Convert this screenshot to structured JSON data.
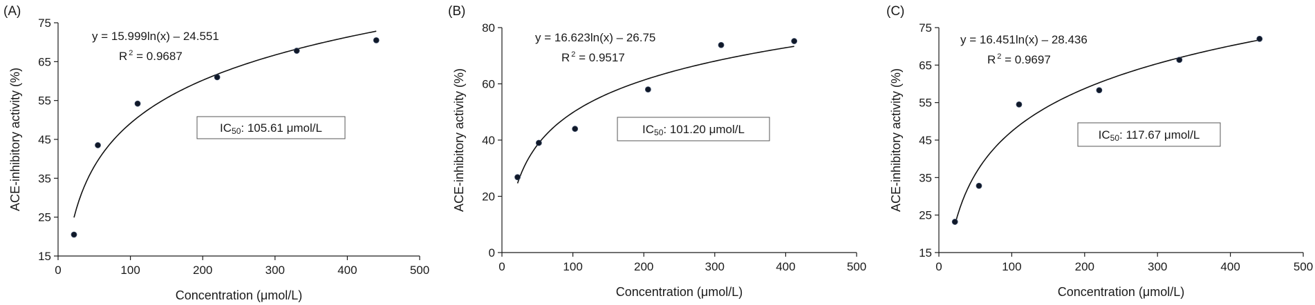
{
  "chart_data": [
    {
      "type": "scatter",
      "panel_label": "(A)",
      "xlabel": "Concentration (μmol/L)",
      "ylabel": "ACE-inhibitory activity (%)",
      "xlim": [
        0,
        500
      ],
      "ylim": [
        15,
        75
      ],
      "xticks": [
        0,
        100,
        200,
        300,
        400,
        500
      ],
      "yticks": [
        15,
        25,
        35,
        45,
        55,
        65,
        75
      ],
      "grid": false,
      "x": [
        22,
        55,
        110,
        220,
        330,
        440
      ],
      "y": [
        20.5,
        43.5,
        54.2,
        61.0,
        67.8,
        70.5
      ],
      "trendline": {
        "type": "logarithmic",
        "a": 15.999,
        "b": -24.551
      },
      "equation": "y = 15.999ln(x) – 24.551",
      "r2_label": "R",
      "r2_sup": "2",
      "r2_value": " = 0.9687",
      "ic_prefix": "IC",
      "ic_sub": "50",
      "ic_value": ": 105.61 μmol/L"
    },
    {
      "type": "scatter",
      "panel_label": "(B)",
      "xlabel": "Concentration (μmol/L)",
      "ylabel": "ACE-inhibitory activity (%)",
      "xlim": [
        0,
        500
      ],
      "ylim": [
        0,
        80
      ],
      "xticks": [
        0,
        100,
        200,
        300,
        400,
        500
      ],
      "yticks": [
        0,
        20,
        40,
        60,
        80
      ],
      "grid": false,
      "x": [
        22,
        52,
        103,
        206,
        309,
        412
      ],
      "y": [
        26.8,
        39.0,
        44.0,
        58.0,
        73.8,
        75.2
      ],
      "trendline": {
        "type": "logarithmic",
        "a": 16.623,
        "b": -26.75
      },
      "equation": "y = 16.623ln(x) – 26.75",
      "r2_label": "R",
      "r2_sup": "2",
      "r2_value": " = 0.9517",
      "ic_prefix": "IC",
      "ic_sub": "50",
      "ic_value": ": 101.20 μmol/L"
    },
    {
      "type": "scatter",
      "panel_label": "(C)",
      "xlabel": "Concentration (μmol/L)",
      "ylabel": "ACE-inhibitory activity (%)",
      "xlim": [
        0,
        500
      ],
      "ylim": [
        15,
        75
      ],
      "xticks": [
        0,
        100,
        200,
        300,
        400,
        500
      ],
      "yticks": [
        15,
        25,
        35,
        45,
        55,
        65,
        75
      ],
      "grid": false,
      "x": [
        22,
        55,
        110,
        220,
        330,
        440
      ],
      "y": [
        23.2,
        32.8,
        54.5,
        58.3,
        66.4,
        72.0
      ],
      "trendline": {
        "type": "logarithmic",
        "a": 16.451,
        "b": -28.436
      },
      "equation": "y = 16.451ln(x) – 28.436",
      "r2_label": "R",
      "r2_sup": "2",
      "r2_value": " = 0.9697",
      "ic_prefix": "IC",
      "ic_sub": "50",
      "ic_value": ": 117.67 μmol/L"
    }
  ]
}
